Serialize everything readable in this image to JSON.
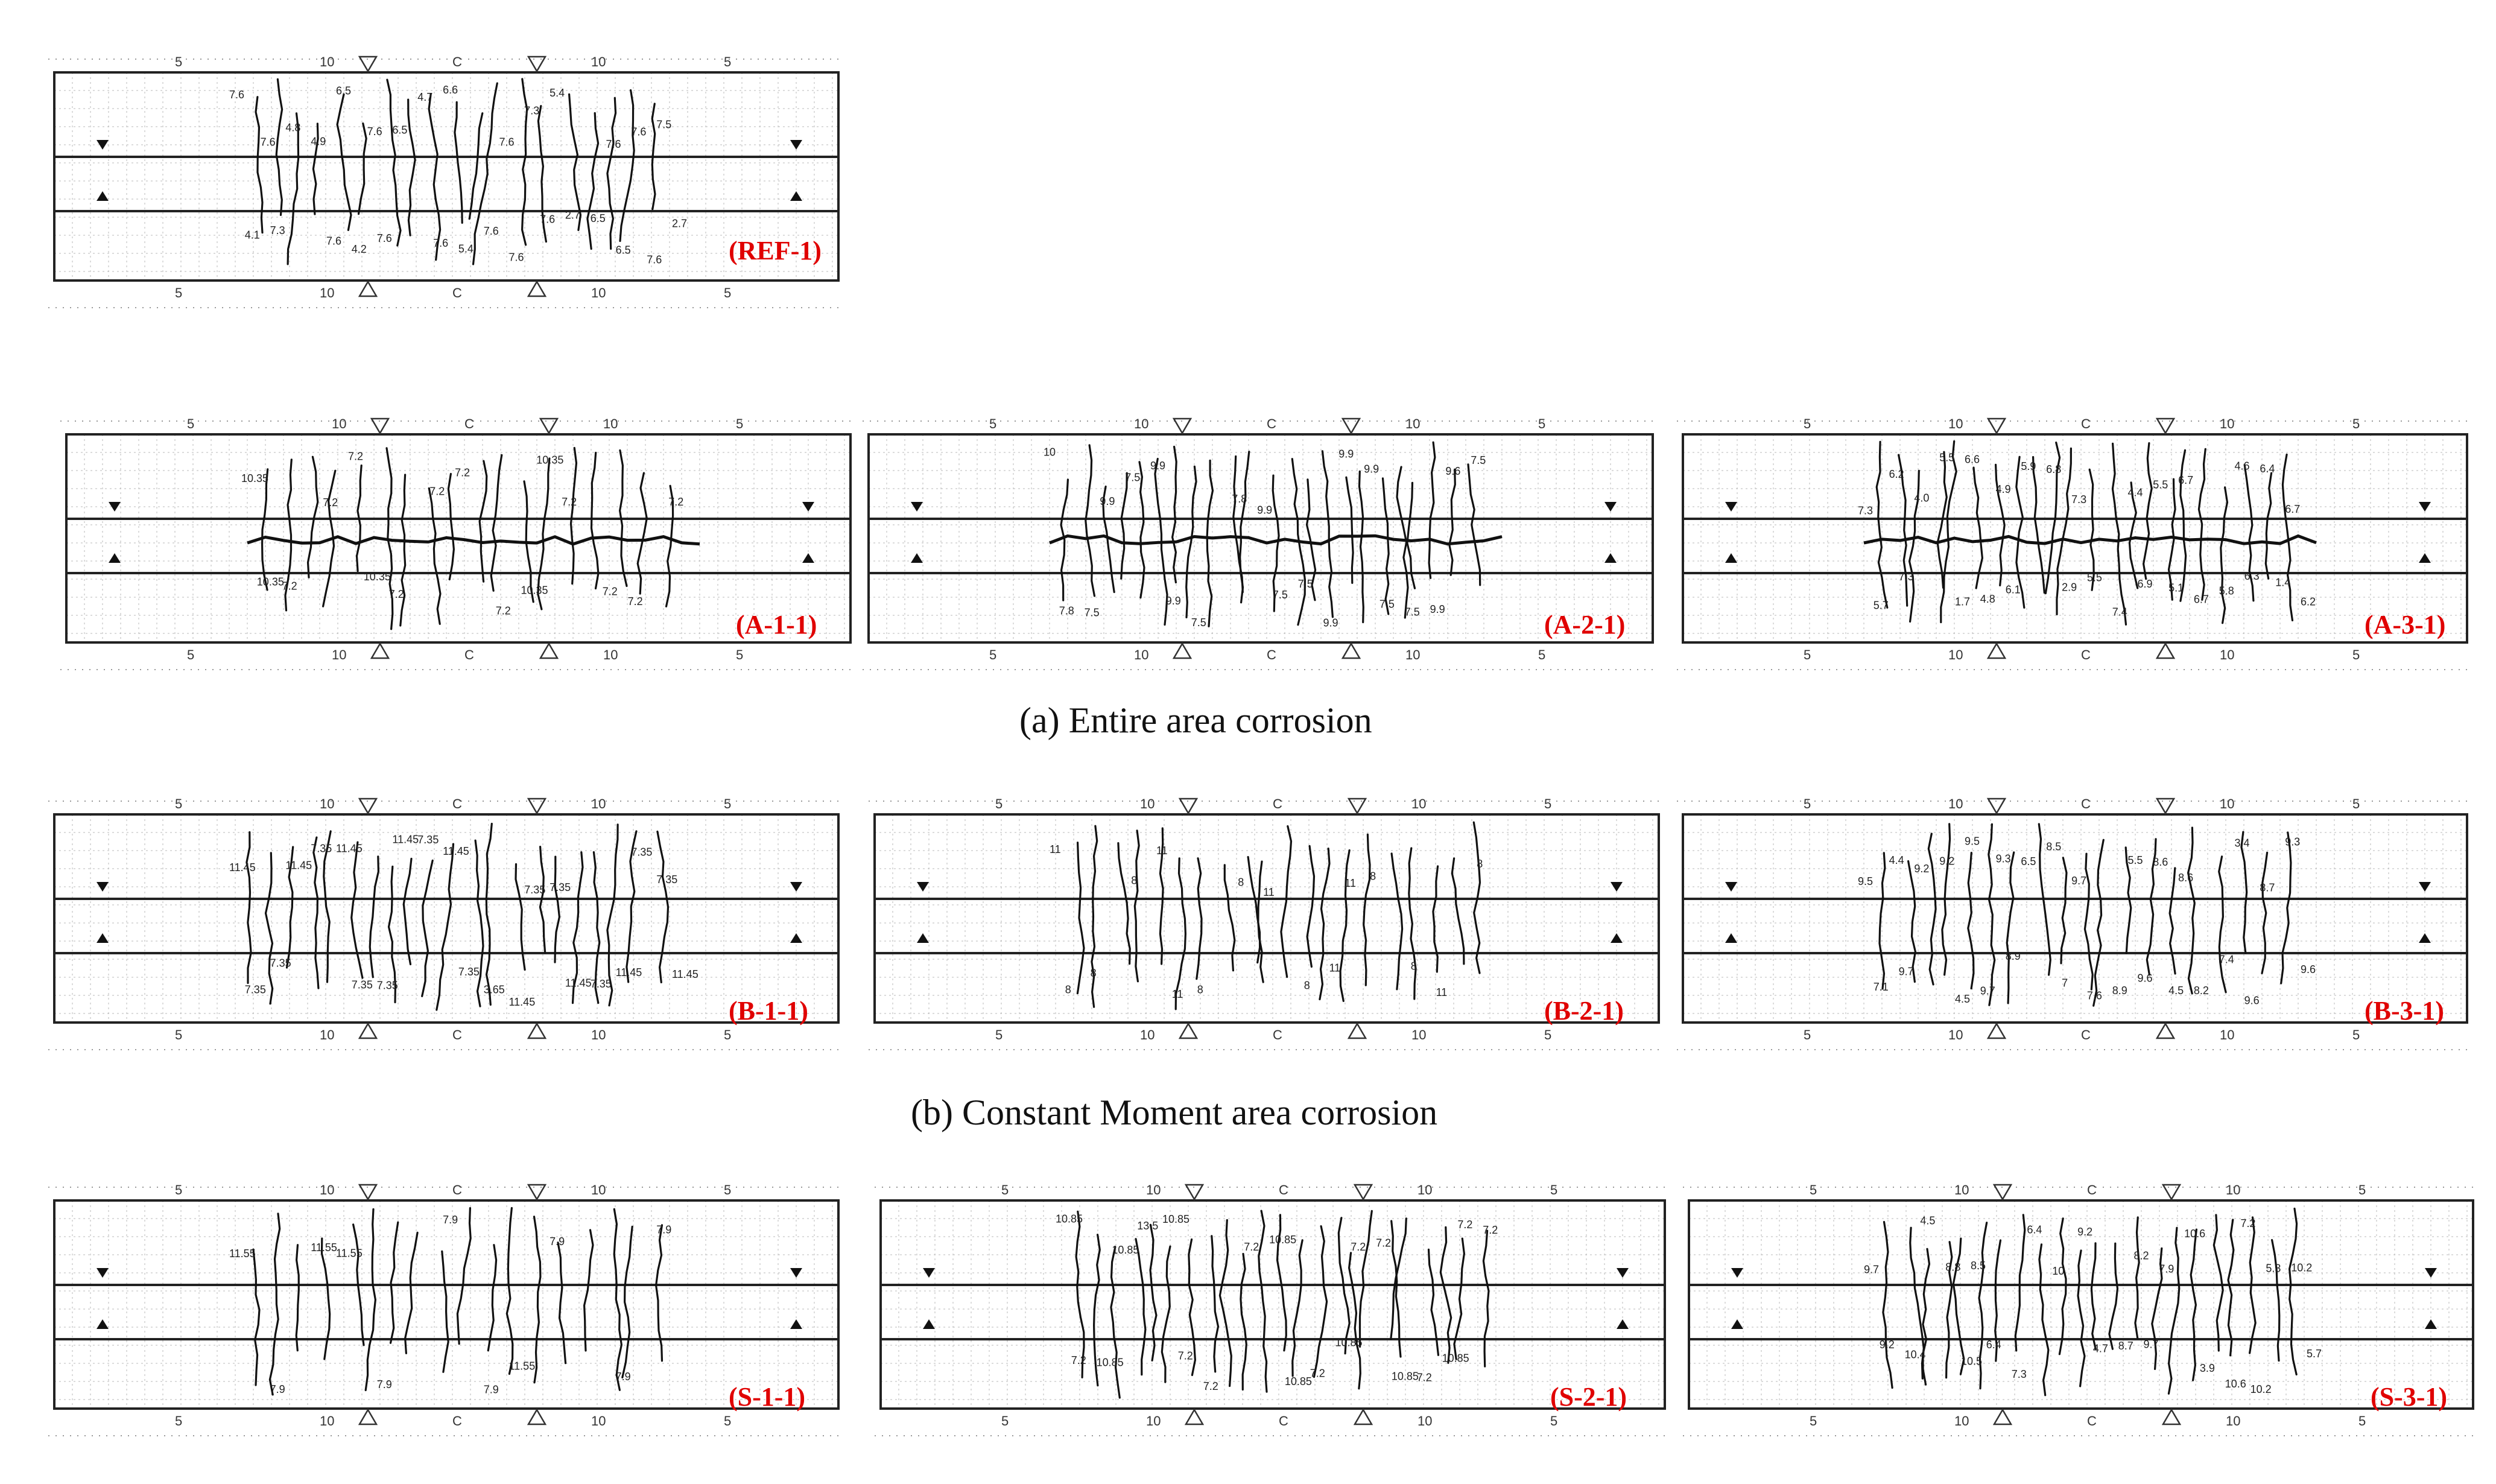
{
  "panels": [
    {
      "id": "REF-1",
      "label": "(REF-1)",
      "labels_top": [
        "5",
        "10",
        "C",
        "10",
        "5"
      ],
      "labels_bottom": [
        "5",
        "10",
        "C",
        "10",
        "5"
      ],
      "crack_values": [
        "7.6",
        "7.6",
        "6.5",
        "6.5",
        "6.6",
        "7.3",
        "5.4",
        "7.6",
        "7.5",
        "7.6",
        "4.9",
        "6.5",
        "4.7",
        "4.1",
        "7.3",
        "4.2",
        "7.6",
        "5.4",
        "4.8",
        "2.7",
        "6.5",
        "2.7",
        "7.6",
        "7.6",
        "7.6",
        "7.6",
        "7.6",
        "7.6",
        "7.6",
        "7.6"
      ]
    },
    {
      "id": "A-1-1",
      "label": "(A-1-1)",
      "labels_top": [
        "5",
        "10",
        "C",
        "10",
        "5"
      ],
      "labels_bottom": [
        "5",
        "10",
        "C",
        "10",
        "5"
      ],
      "crack_values": [
        "10.35",
        "10.35",
        "7.2",
        "7.2",
        "7.2",
        "7.2",
        "7.2",
        "7.2",
        "7.2",
        "7.2",
        "7.2",
        "7.2",
        "7.2",
        "10.35",
        "10.35",
        "10.35"
      ]
    },
    {
      "id": "A-2-1",
      "label": "(A-2-1)",
      "labels_top": [
        "5",
        "10",
        "C",
        "10",
        "5"
      ],
      "labels_bottom": [
        "5",
        "10",
        "C",
        "10",
        "5"
      ],
      "crack_values": [
        "10",
        "9.9",
        "9.9",
        "9.9",
        "9.9",
        "7.5",
        "9.9",
        "7.5",
        "7.5",
        "7.5",
        "7.5",
        "7.5",
        "7.8",
        "7.8",
        "9.9",
        "9.9",
        "9.6",
        "7.5",
        "9.9",
        "7.5"
      ]
    },
    {
      "id": "A-3-1",
      "label": "(A-3-1)",
      "labels_top": [
        "5",
        "10",
        "C",
        "10",
        "5"
      ],
      "labels_bottom": [
        "5",
        "10",
        "C",
        "10",
        "5"
      ],
      "crack_values": [
        "7.3",
        "6.9",
        "6.6",
        "6.3",
        "7.3",
        "7.3",
        "6.7",
        "6.1",
        "6.7",
        "7.4",
        "5.5",
        "5.8",
        "6.8",
        "5.7",
        "5.5",
        "4.8",
        "6.4",
        "5.5",
        "4.0",
        "6.7",
        "5.9",
        "6.2",
        "4.4",
        "1.7",
        "4.6",
        "2.9",
        "6.2",
        "5.1",
        "4.9",
        "1.4"
      ]
    },
    {
      "id": "B-1-1",
      "label": "(B-1-1)",
      "labels_top": [
        "5",
        "10",
        "C",
        "10",
        "5"
      ],
      "labels_bottom": [
        "5",
        "10",
        "C",
        "10",
        "5"
      ],
      "crack_values": [
        "11.45",
        "11.45",
        "11.45",
        "11.45",
        "11.45",
        "7.35",
        "7.35",
        "7.35",
        "7.35",
        "3.65",
        "7.35",
        "7.35",
        "7.35",
        "7.35",
        "7.35",
        "7.35",
        "7.35",
        "7.35",
        "11.45",
        "11.45",
        "11.45",
        "11.45"
      ]
    },
    {
      "id": "B-2-1",
      "label": "(B-2-1)",
      "labels_top": [
        "5",
        "10",
        "C",
        "10",
        "5"
      ],
      "labels_bottom": [
        "5",
        "10",
        "C",
        "10",
        "5"
      ],
      "crack_values": [
        "11",
        "11",
        "11",
        "11",
        "11",
        "8",
        "8",
        "8",
        "8",
        "8",
        "8",
        "8",
        "8",
        "8",
        "11",
        "11"
      ]
    },
    {
      "id": "B-3-1",
      "label": "(B-3-1)",
      "labels_top": [
        "5",
        "10",
        "C",
        "10",
        "5"
      ],
      "labels_bottom": [
        "5",
        "10",
        "C",
        "10",
        "5"
      ],
      "crack_values": [
        "9.5",
        "9.6",
        "9.5",
        "9.6",
        "9.7",
        "9.7",
        "8.6",
        "8.9",
        "9.3",
        "8.9",
        "9.2",
        "7.4",
        "8.5",
        "7.1",
        "8.6",
        "9.7",
        "8.7",
        "7.6",
        "9.2",
        "8.2",
        "6.5",
        "9.6",
        "5.5",
        "4.5",
        "3.4",
        "7",
        "4.4",
        "4.5",
        "9.3"
      ]
    },
    {
      "id": "S-1-1",
      "label": "(S-1-1)",
      "labels_top": [
        "5",
        "10",
        "C",
        "10",
        "5"
      ],
      "labels_bottom": [
        "5",
        "10",
        "C",
        "10",
        "5"
      ],
      "crack_values": [
        "11.55",
        "11.55",
        "11.55",
        "7.9",
        "7.9",
        "7.9",
        "7.9",
        "7.9",
        "7.9",
        "7.9",
        "11.55"
      ]
    },
    {
      "id": "S-2-1",
      "label": "(S-2-1)",
      "labels_top": [
        "5",
        "10",
        "C",
        "10",
        "5"
      ],
      "labels_bottom": [
        "5",
        "10",
        "C",
        "10",
        "5"
      ],
      "crack_values": [
        "10.85",
        "10.85",
        "10.85",
        "10.85",
        "10.85",
        "10.85",
        "7.2",
        "7.2",
        "7.2",
        "7.2",
        "13.5",
        "7.2",
        "7.2",
        "7.2",
        "7.2",
        "7.2",
        "7.2",
        "10.85",
        "10.85",
        "10.85"
      ]
    },
    {
      "id": "S-3-1",
      "label": "(S-3-1)",
      "labels_top": [
        "5",
        "10",
        "C",
        "10",
        "5"
      ],
      "labels_bottom": [
        "5",
        "10",
        "C",
        "10",
        "5"
      ],
      "crack_values": [
        "9.7",
        "9.7",
        "8.5",
        "10.2",
        "9.2",
        "10.4",
        "10.6",
        "7.3",
        "10.2",
        "8.7",
        "8.8",
        "10.6",
        "10",
        "9.2",
        "7.9",
        "6.4",
        "5.3",
        "4.7",
        "4.5",
        "3.9",
        "6.4",
        "5.7",
        "8.2",
        "10.5",
        "7.2"
      ]
    }
  ],
  "captions": {
    "a": "(a) Entire area corrosion",
    "b": "(b) Constant Moment area corrosion"
  },
  "colors": {
    "label": "#e00000",
    "line": "#111111",
    "grid": "#b8b8b8"
  }
}
